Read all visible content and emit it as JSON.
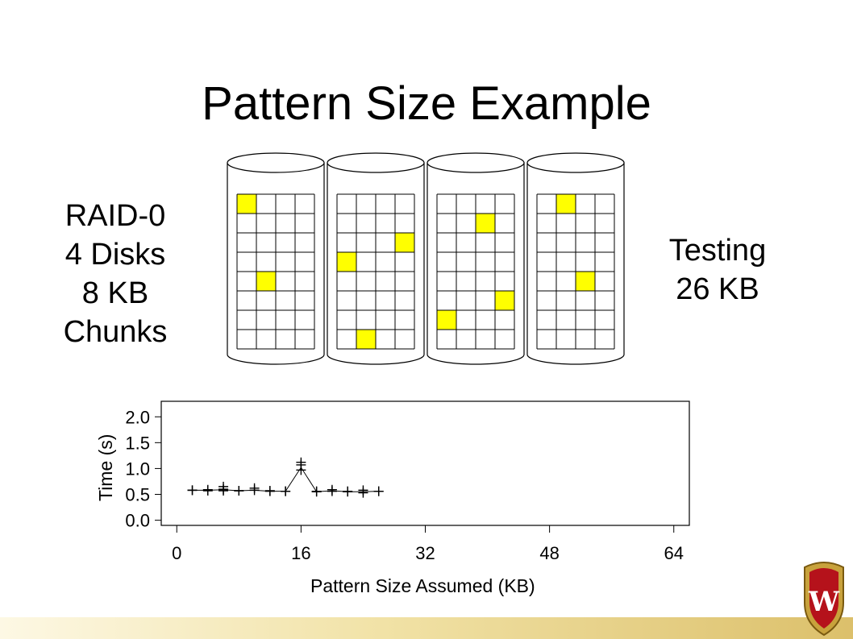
{
  "slide": {
    "title": "Pattern Size Example",
    "left_label": [
      "RAID-0",
      "4 Disks",
      "8 KB",
      "Chunks"
    ],
    "right_label": [
      "Testing",
      "26 KB"
    ],
    "highlight_color": "#ffff00"
  },
  "disks": {
    "count": 4,
    "columns_per_disk": 4,
    "rows_per_disk": 8,
    "highlighted": [
      [
        [
          0,
          0
        ],
        [
          4,
          1
        ]
      ],
      [
        [
          3,
          0
        ],
        [
          2,
          3
        ],
        [
          7,
          1
        ]
      ],
      [
        [
          1,
          2
        ],
        [
          5,
          3
        ],
        [
          6,
          0
        ]
      ],
      [
        [
          0,
          1
        ],
        [
          4,
          2
        ]
      ]
    ]
  },
  "crest": {
    "letter": "W"
  },
  "chart_data": {
    "type": "scatter",
    "xlabel": "Pattern Size Assumed (KB)",
    "ylabel": "Time (s)",
    "xlim": [
      -2,
      66
    ],
    "ylim": [
      -0.1,
      2.3
    ],
    "x_ticks": [
      "0",
      "16",
      "32",
      "48",
      "64"
    ],
    "y_ticks": [
      "0.0",
      "0.5",
      "1.0",
      "1.5",
      "2.0"
    ],
    "series": [
      {
        "marker": "+",
        "points": [
          [
            2,
            0.58
          ],
          [
            2,
            0.58
          ],
          [
            4,
            0.57
          ],
          [
            4,
            0.59
          ],
          [
            6,
            0.57
          ],
          [
            6,
            0.6
          ],
          [
            6,
            0.65
          ],
          [
            8,
            0.57
          ],
          [
            8,
            0.57
          ],
          [
            10,
            0.58
          ],
          [
            10,
            0.62
          ],
          [
            12,
            0.56
          ],
          [
            12,
            0.57
          ],
          [
            14,
            0.56
          ],
          [
            14,
            0.56
          ],
          [
            16,
            1.07
          ],
          [
            16,
            1.12
          ],
          [
            16,
            0.97
          ],
          [
            18,
            0.55
          ],
          [
            18,
            0.56
          ],
          [
            20,
            0.56
          ],
          [
            20,
            0.59
          ],
          [
            22,
            0.55
          ],
          [
            22,
            0.56
          ],
          [
            24,
            0.53
          ],
          [
            24,
            0.58
          ],
          [
            26,
            0.56
          ],
          [
            26,
            0.56
          ]
        ],
        "line_x": [
          2,
          4,
          6,
          8,
          10,
          12,
          14,
          16,
          18,
          20,
          22,
          24,
          26
        ],
        "line_y": [
          0.58,
          0.58,
          0.59,
          0.57,
          0.58,
          0.56,
          0.56,
          1.02,
          0.55,
          0.57,
          0.55,
          0.55,
          0.56
        ]
      }
    ]
  }
}
